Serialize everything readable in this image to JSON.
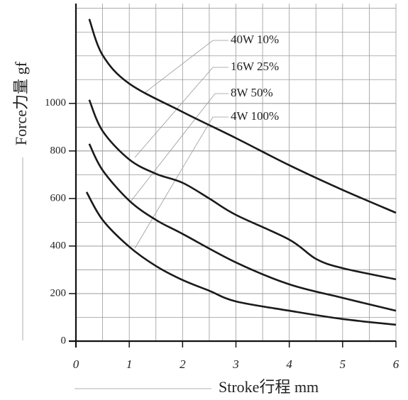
{
  "chart_data": {
    "type": "line",
    "x_label": "Stroke行程 mm",
    "y_label": "Force力量 gf",
    "xlim": [
      0,
      6
    ],
    "xticks": [
      0,
      1,
      2,
      3,
      4,
      5,
      6
    ],
    "ylim": [
      0,
      1420
    ],
    "yticks": [
      0,
      200,
      400,
      600,
      800,
      1000
    ],
    "grid": true,
    "series": [
      {
        "name": "40W 10%",
        "color": "#1a1a1a",
        "x": [
          0.25,
          0.5,
          1,
          2,
          3,
          4,
          5,
          6
        ],
        "values": [
          1355,
          1203,
          1083,
          964,
          854,
          740,
          636,
          540
        ]
      },
      {
        "name": "16W 25%",
        "color": "#1a1a1a",
        "x": [
          0.25,
          0.5,
          1,
          1.5,
          2,
          2.5,
          3,
          4,
          4.5,
          5,
          6
        ],
        "values": [
          1015,
          884,
          764,
          704,
          666,
          600,
          531,
          427,
          346,
          307,
          260
        ]
      },
      {
        "name": "8W 50%",
        "color": "#1a1a1a",
        "x": [
          0.25,
          0.5,
          1,
          1.5,
          2,
          3,
          4,
          5,
          6
        ],
        "values": [
          830,
          719,
          591,
          510,
          451,
          331,
          239,
          182,
          128
        ]
      },
      {
        "name": "4W 100%",
        "color": "#1a1a1a",
        "x": [
          0.2,
          0.5,
          1,
          1.5,
          2,
          2.5,
          3,
          4,
          5,
          6
        ],
        "values": [
          627,
          510,
          397,
          316,
          257,
          212,
          167,
          128,
          93,
          69
        ]
      }
    ]
  }
}
